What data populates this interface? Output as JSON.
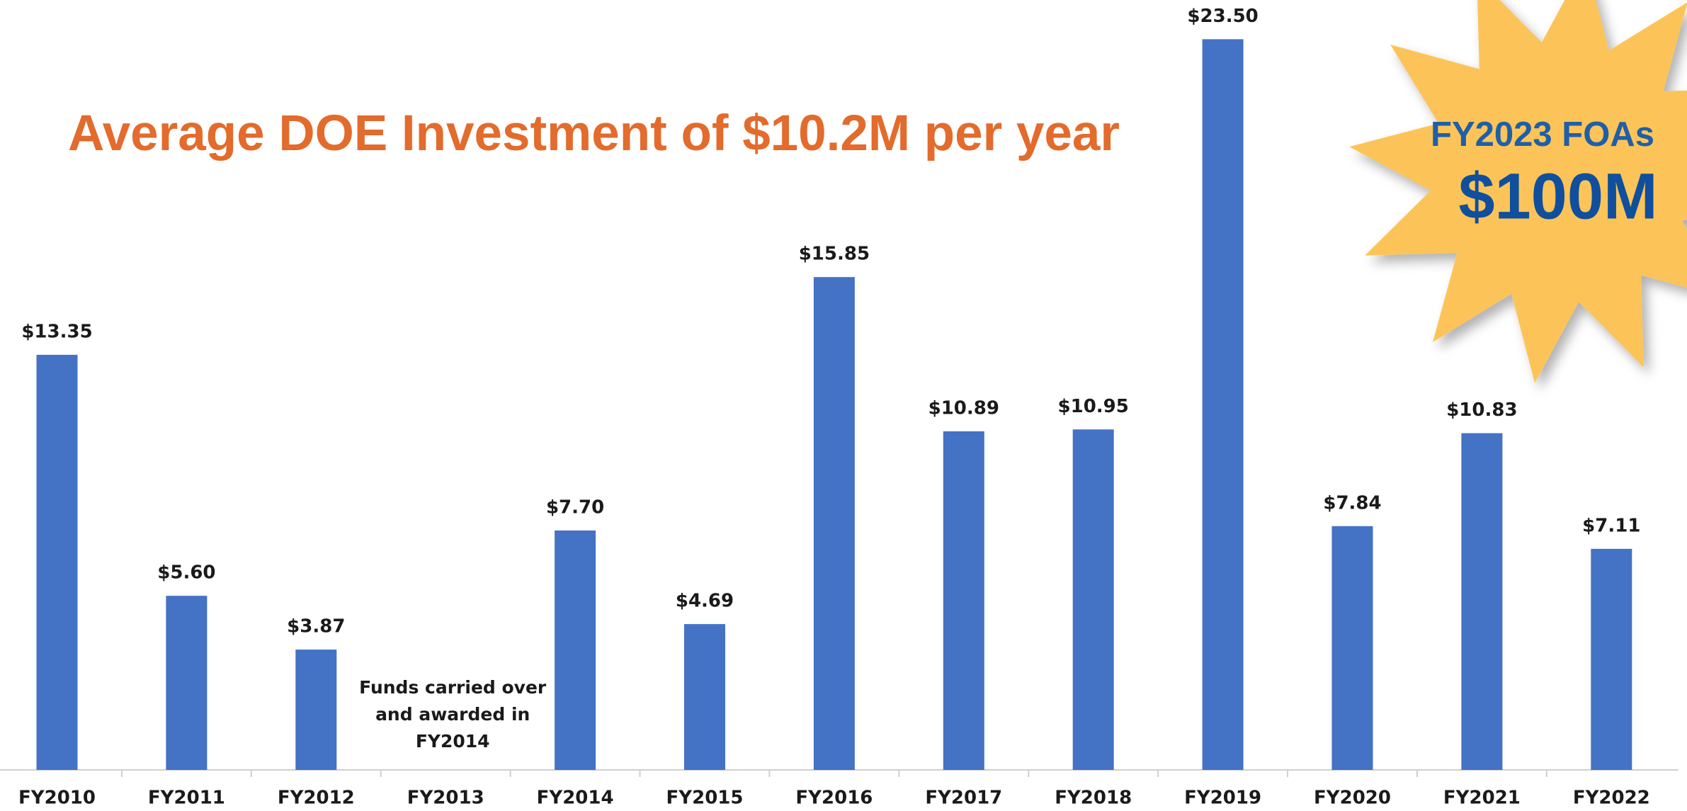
{
  "chart_data": {
    "type": "bar",
    "title": "Average DOE Investment of $10.2M per year",
    "categories": [
      "FY2010",
      "FY2011",
      "FY2012",
      "FY2013",
      "FY2014",
      "FY2015",
      "FY2016",
      "FY2017",
      "FY2018",
      "FY2019",
      "FY2020",
      "FY2021",
      "FY2022"
    ],
    "values": [
      13.35,
      5.6,
      3.87,
      null,
      7.7,
      4.69,
      15.85,
      10.89,
      10.95,
      23.5,
      7.84,
      10.83,
      7.11
    ],
    "value_labels": [
      "$13.35",
      "$5.60",
      "$3.87",
      null,
      "$7.70",
      "$4.69",
      "$15.85",
      "$10.89",
      "$10.95",
      "$23.50",
      "$7.84",
      "$10.83",
      "$7.11"
    ],
    "color": "#4472c4",
    "annotation": [
      "Funds carried over",
      "and awarded in",
      "FY2014"
    ],
    "callout": {
      "line1": "FY2023 FOAs",
      "line2": "$100M"
    }
  }
}
